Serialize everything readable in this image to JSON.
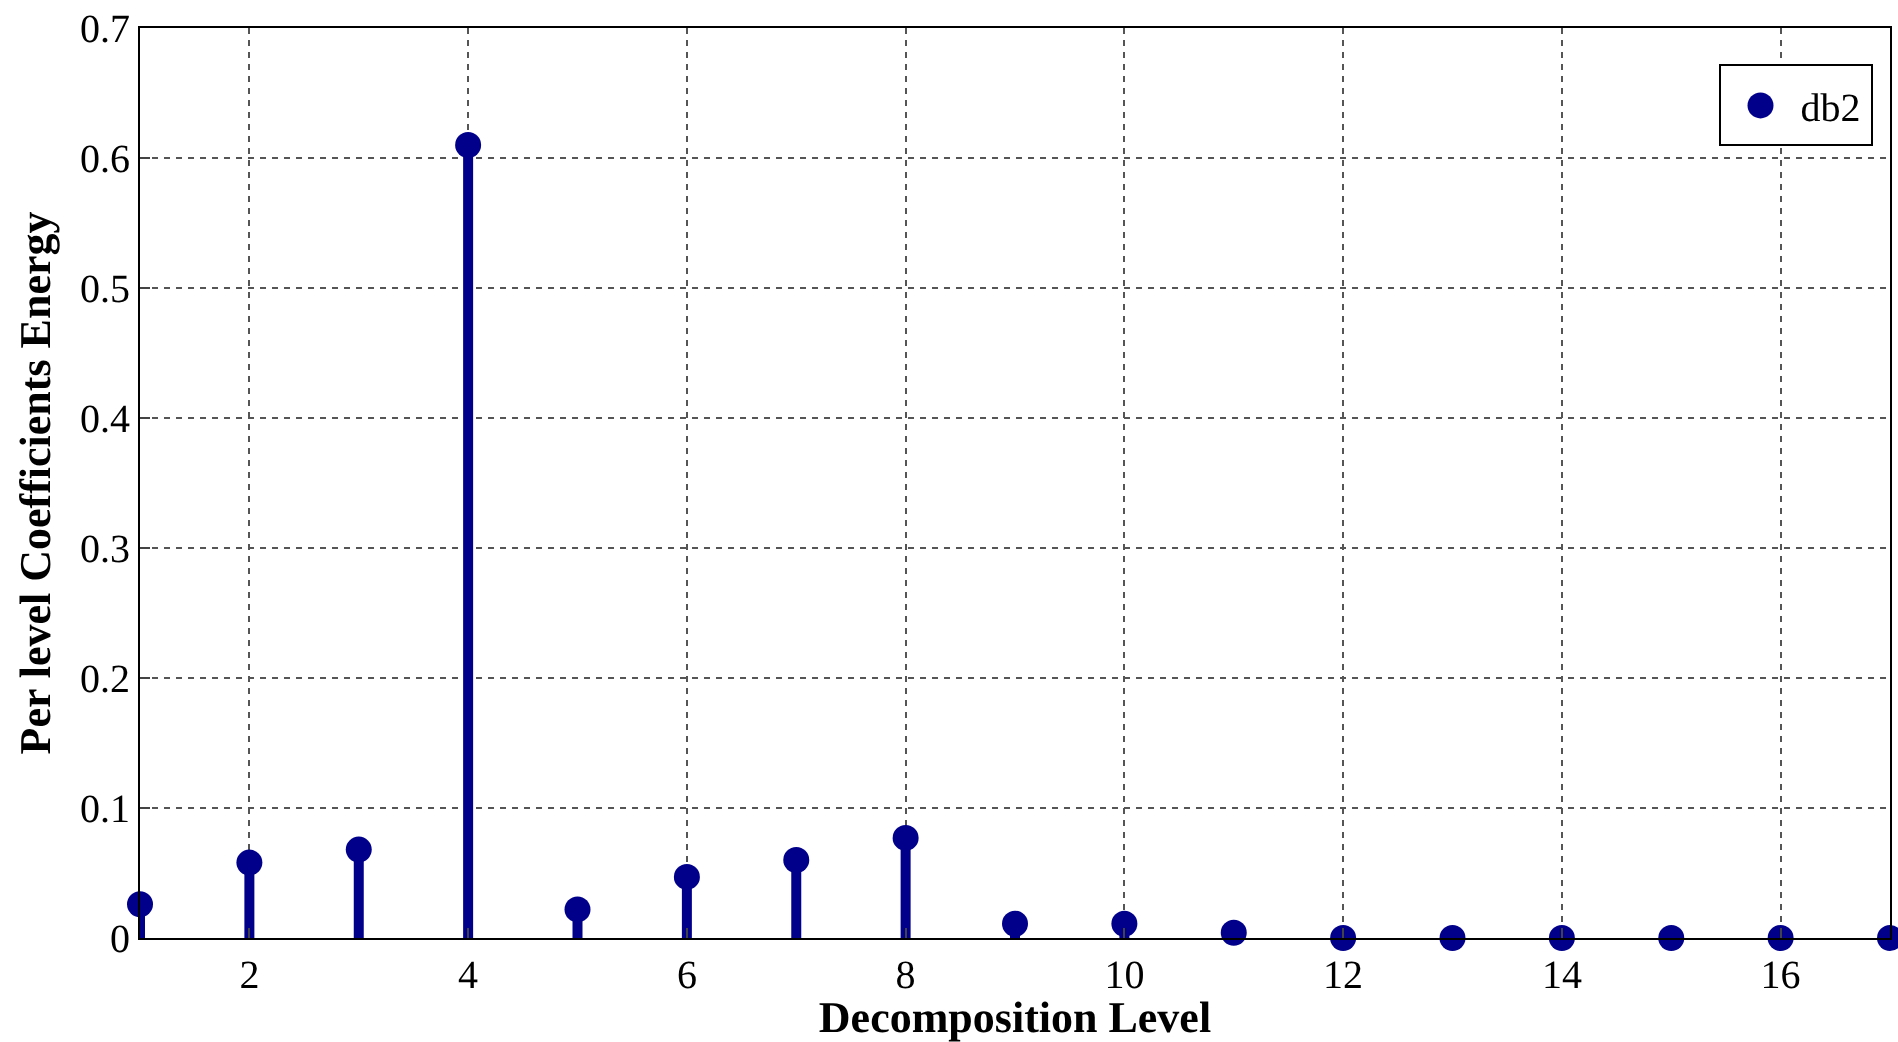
{
  "chart_data": {
    "type": "lollipop",
    "xlabel": "Decomposition Level",
    "ylabel": "Per level Coefficients Energy",
    "x": [
      1,
      2,
      3,
      4,
      5,
      6,
      7,
      8,
      9,
      10,
      11,
      12,
      13,
      14,
      15,
      16,
      17
    ],
    "series": [
      {
        "name": "db2",
        "color": "#00008b",
        "values": [
          0.026,
          0.058,
          0.068,
          0.61,
          0.022,
          0.047,
          0.06,
          0.077,
          0.011,
          0.011,
          0.004,
          0,
          0,
          0,
          0,
          0,
          0
        ]
      }
    ],
    "xlim": [
      1,
      17
    ],
    "xticks": [
      2,
      4,
      6,
      8,
      10,
      12,
      14,
      16
    ],
    "ylim": [
      0,
      0.7
    ],
    "yticks": [
      0,
      0.1,
      0.2,
      0.3,
      0.4,
      0.5,
      0.6,
      0.7
    ],
    "grid": true,
    "legend": "top right",
    "marker": "circle"
  }
}
